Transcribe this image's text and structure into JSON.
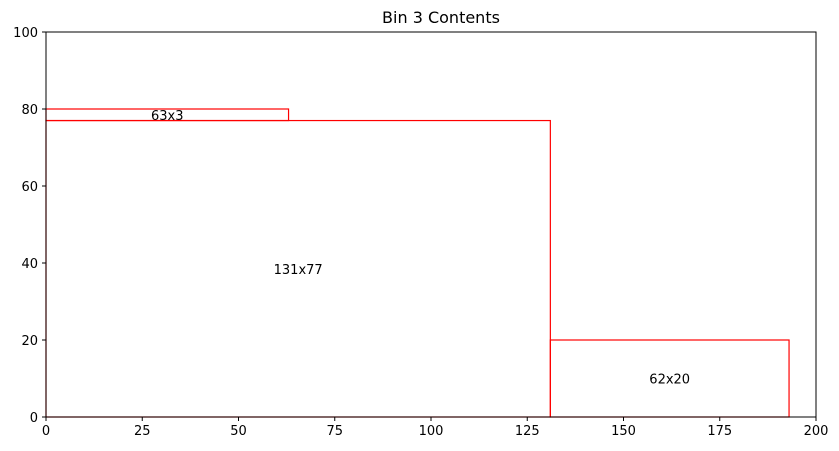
{
  "chart_data": {
    "type": "rectangles",
    "title": "Bin 3 Contents",
    "xlabel": "",
    "ylabel": "",
    "xlim": [
      0,
      200
    ],
    "ylim": [
      0,
      100
    ],
    "xticks": [
      0,
      25,
      50,
      75,
      100,
      125,
      150,
      175,
      200
    ],
    "yticks": [
      0,
      20,
      40,
      60,
      80,
      100
    ],
    "grid": false,
    "rect_color": "#ff0000",
    "rectangles": [
      {
        "x": 0,
        "y": 0,
        "width": 131,
        "height": 77,
        "label": "131x77"
      },
      {
        "x": 131,
        "y": 0,
        "width": 62,
        "height": 20,
        "label": "62x20"
      },
      {
        "x": 0,
        "y": 77,
        "width": 63,
        "height": 3,
        "label": "63x3"
      }
    ]
  }
}
